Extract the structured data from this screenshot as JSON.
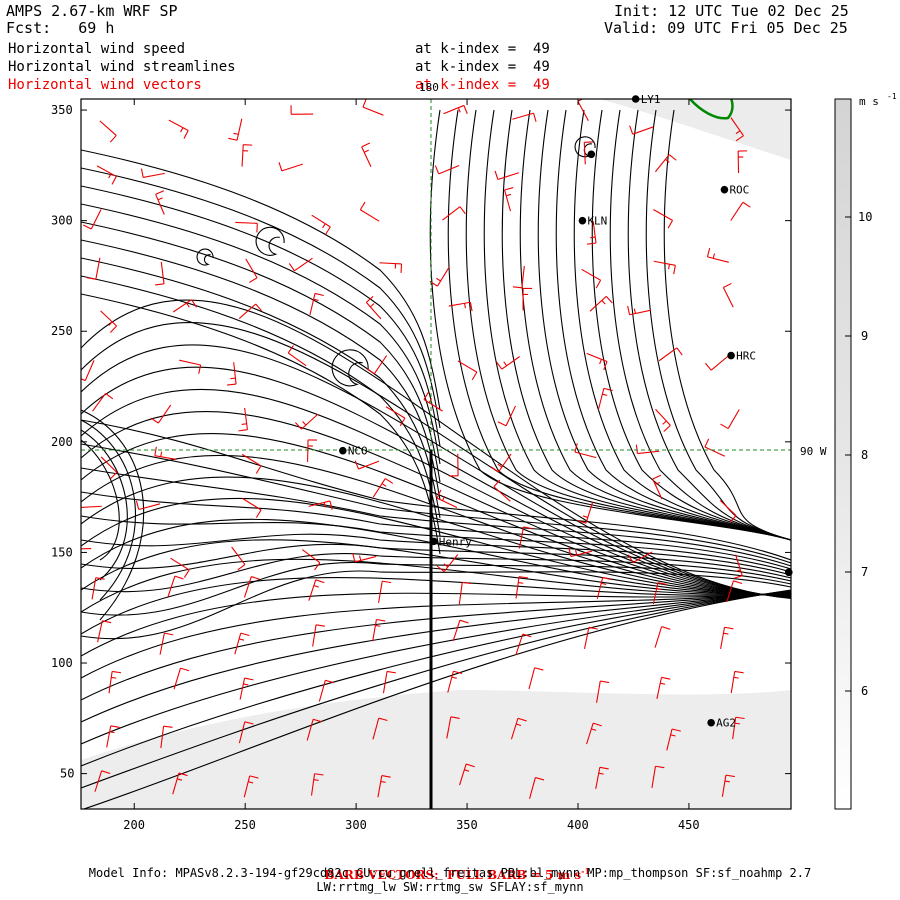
{
  "header": {
    "left_line1": "AMPS 2.67-km WRF SP",
    "left_line2": "Fcst:   69 h",
    "right_line1": "Init: 12 UTC Tue 02 Dec 25",
    "right_line2": "Valid: 09 UTC Fri 05 Dec 25"
  },
  "fields": [
    {
      "name": "Horizontal wind speed",
      "level": "at k-index =  49",
      "color": "#000000"
    },
    {
      "name": "Horizontal wind streamlines",
      "level": "at k-index =  49",
      "color": "#000000"
    },
    {
      "name": "Horizontal wind vectors",
      "level": "at k-index =  49",
      "color": "#ee0000"
    }
  ],
  "map": {
    "x_ticks": [
      "200",
      "250",
      "300",
      "350",
      "400",
      "450"
    ],
    "y_ticks": [
      "350",
      "300",
      "250",
      "200",
      "150",
      "100",
      "50"
    ],
    "meridian_label": "180",
    "parallel_label": "90 W",
    "stations": [
      {
        "name": "LY1",
        "x": 426,
        "y": 355
      },
      {
        "name": "",
        "x": 406,
        "y": 330
      },
      {
        "name": "ROC",
        "x": 466,
        "y": 314
      },
      {
        "name": "KLN",
        "x": 402,
        "y": 300
      },
      {
        "name": "HRC",
        "x": 469,
        "y": 239
      },
      {
        "name": "NCO",
        "x": 294,
        "y": 196
      },
      {
        "name": "Henry",
        "x": 335,
        "y": 155
      },
      {
        "name": "",
        "x": 495,
        "y": 141
      },
      {
        "name": "AG2",
        "x": 460,
        "y": 73
      }
    ],
    "colors": {
      "streamline": "#000000",
      "barb": "#ee0000",
      "coast": "#008800",
      "grid": "#228822",
      "shade": "#d8d8d8"
    }
  },
  "colorbar": {
    "unit": "m s",
    "unit_exp": "-1",
    "labels": [
      "10",
      "9",
      "8",
      "7",
      "6"
    ]
  },
  "footer": {
    "barb_note": "BARB VECTORS:  FULL BARB = 5 m s",
    "barb_exp": "-1",
    "model_info_1": "Model Info: MPASv8.2.3-194-gf29cd82c CU:cu_grell_freitas PBL:bl_mynn MP:mp_thompson SF:sf_noahmp 2.7",
    "model_info_2": "LW:rrtmg_lw SW:rrtmg_sw SFLAY:sf_mynn"
  }
}
